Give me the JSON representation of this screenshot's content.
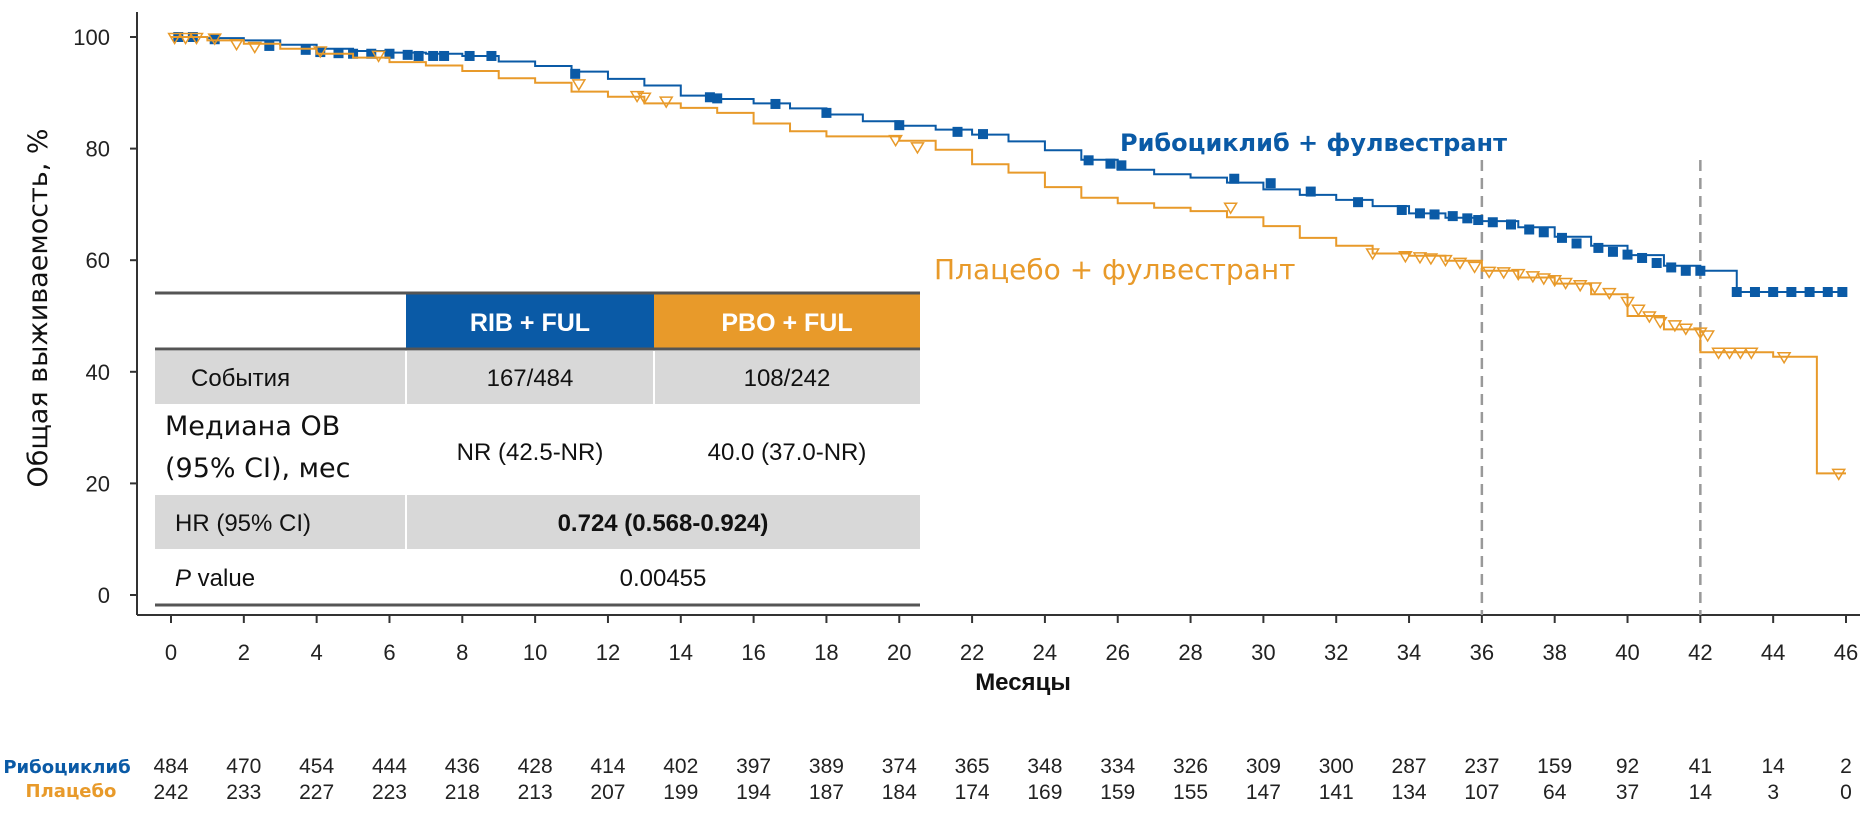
{
  "chart_data": {
    "type": "line",
    "ylabel": "Общая выживаемость, %",
    "xlabel": "Месяцы",
    "xlim": [
      0,
      46
    ],
    "ylim": [
      0,
      100
    ],
    "x_ticks": [
      0,
      2,
      4,
      6,
      8,
      10,
      12,
      14,
      16,
      18,
      20,
      22,
      24,
      26,
      28,
      30,
      32,
      34,
      36,
      38,
      40,
      42,
      44,
      46
    ],
    "y_ticks": [
      0,
      20,
      40,
      60,
      80,
      100
    ],
    "reference_lines_x": [
      36,
      42
    ],
    "colors": {
      "rib": "#0a5aa6",
      "pbo": "#e89a2a",
      "table_gray": "#d8d8d8"
    },
    "series": [
      {
        "name": "Рибоциклиб + фулвестрант",
        "step_x": [
          0,
          1,
          2,
          3,
          4,
          5,
          6,
          7,
          8,
          9,
          10,
          11,
          12,
          13,
          14,
          15,
          16,
          17,
          18,
          19,
          20,
          21,
          22,
          23,
          24,
          25,
          26,
          27,
          28,
          29,
          30,
          31,
          32,
          33,
          34,
          35,
          36,
          37,
          38,
          39,
          40,
          41,
          42,
          43,
          44,
          45,
          46
        ],
        "step_y": [
          100,
          99.8,
          99.4,
          98.6,
          97.9,
          97.5,
          97.2,
          97.0,
          96.6,
          95.6,
          94.8,
          93.8,
          92.5,
          91.3,
          89.5,
          88.9,
          88.1,
          87.2,
          86.1,
          84.9,
          84.1,
          83.4,
          82.5,
          81.3,
          79.7,
          78.0,
          76.2,
          75.4,
          74.8,
          73.9,
          72.7,
          71.7,
          70.8,
          69.7,
          68.4,
          67.6,
          67.0,
          65.9,
          64.2,
          62.6,
          60.9,
          59.0,
          58.1,
          54.3,
          54.3,
          54.3,
          54.3
        ],
        "censor_x": [
          0.2,
          0.6,
          1.2,
          2.7,
          3.7,
          4.1,
          4.6,
          5.0,
          5.5,
          6.0,
          6.5,
          6.8,
          7.2,
          7.5,
          8.2,
          8.8,
          11.1,
          14.8,
          15.0,
          16.6,
          18.0,
          20.0,
          21.6,
          22.3,
          25.2,
          25.8,
          26.1,
          29.2,
          30.2,
          31.3,
          32.6,
          33.8,
          34.3,
          34.7,
          35.2,
          35.6,
          35.9,
          36.3,
          36.8,
          37.3,
          37.7,
          38.2,
          38.6,
          39.2,
          39.6,
          40.0,
          40.4,
          40.8,
          41.2,
          41.6,
          42.0,
          43.0,
          43.5,
          44.0,
          44.5,
          45.0,
          45.5,
          45.9
        ],
        "censor_y": [
          100,
          100,
          99.6,
          98.4,
          97.7,
          97.3,
          97.1,
          97.0,
          97.0,
          97.0,
          96.8,
          96.6,
          96.6,
          96.6,
          96.6,
          96.6,
          93.4,
          89.2,
          89.0,
          88.0,
          86.4,
          84.2,
          83.0,
          82.6,
          77.9,
          77.3,
          77.0,
          74.6,
          73.8,
          72.3,
          70.4,
          69.0,
          68.4,
          68.2,
          67.9,
          67.5,
          67.2,
          66.8,
          66.4,
          65.5,
          65.0,
          64.0,
          63.0,
          62.2,
          61.5,
          61.0,
          60.4,
          59.5,
          58.7,
          58.1,
          58.1,
          54.3,
          54.3,
          54.3,
          54.3,
          54.3,
          54.3,
          54.3
        ]
      },
      {
        "name": "Плацебо + фулвестрант",
        "step_x": [
          0,
          1,
          2,
          3,
          4,
          5,
          6,
          7,
          8,
          9,
          10,
          11,
          12,
          13,
          14,
          15,
          16,
          17,
          18,
          19,
          20,
          21,
          22,
          23,
          24,
          25,
          26,
          27,
          28,
          29,
          30,
          31,
          32,
          33,
          34,
          35,
          36,
          37,
          38,
          39,
          40,
          41,
          42,
          43,
          44,
          45,
          45.2,
          46
        ],
        "step_y": [
          100,
          99.4,
          98.8,
          97.9,
          97.0,
          96.3,
          95.5,
          94.9,
          93.9,
          92.6,
          91.8,
          90.2,
          89.3,
          88.1,
          87.3,
          86.4,
          84.5,
          83.1,
          82.2,
          82.2,
          81.4,
          79.8,
          77.2,
          75.7,
          73.1,
          71.2,
          70.2,
          69.4,
          68.8,
          67.7,
          66.1,
          64.0,
          62.6,
          61.2,
          60.8,
          59.9,
          58.1,
          56.9,
          55.8,
          53.9,
          50.0,
          47.6,
          43.5,
          43.5,
          42.7,
          42.7,
          21.8,
          21.8
        ],
        "censor_x": [
          0.1,
          0.4,
          0.7,
          1.2,
          1.8,
          2.3,
          4.1,
          5.7,
          11.2,
          12.8,
          13.0,
          13.6,
          19.9,
          20.5,
          29.1,
          33.0,
          33.9,
          34.3,
          34.6,
          35.0,
          35.4,
          35.8,
          36.2,
          36.6,
          37.0,
          37.4,
          37.7,
          38.0,
          38.3,
          38.7,
          39.1,
          39.5,
          40.0,
          40.3,
          40.6,
          40.9,
          41.3,
          41.6,
          42.0,
          42.2,
          42.5,
          42.8,
          43.1,
          43.4,
          44.3,
          45.8
        ],
        "censor_y": [
          99.9,
          99.9,
          99.9,
          99.8,
          98.8,
          98.3,
          97.5,
          96.7,
          91.6,
          89.5,
          89.2,
          88.5,
          81.6,
          80.3,
          69.5,
          61.3,
          60.8,
          60.6,
          60.4,
          60.1,
          59.6,
          58.9,
          58.0,
          57.9,
          57.6,
          57.2,
          56.8,
          56.5,
          56.0,
          55.6,
          55.2,
          54.2,
          52.6,
          51.2,
          50.0,
          49.0,
          48.4,
          47.8,
          47.1,
          46.6,
          43.5,
          43.5,
          43.5,
          43.5,
          42.7,
          21.8
        ]
      }
    ]
  },
  "table": {
    "col_rib": "RIB + FUL",
    "col_pbo": "PBO + FUL",
    "events_label": "События",
    "events_rib": "167/484",
    "events_pbo": "108/242",
    "median_label_1": "Медиана ОВ",
    "median_label_2": "(95% CI), мес",
    "median_rib": "NR (42.5-NR)",
    "median_pbo": "40.0 (37.0-NR)",
    "hr_label": "HR (95% CI)",
    "hr_value": "0.724 (0.568-0.924)",
    "p_label_italic": "P",
    "p_label_rest": " value",
    "p_value": "0.00455"
  },
  "risk_table": {
    "rib_label": "Рибоциклиб",
    "pbo_label": "Плацебо",
    "rib_counts": [
      "484",
      "470",
      "454",
      "444",
      "436",
      "428",
      "414",
      "402",
      "397",
      "389",
      "374",
      "365",
      "348",
      "334",
      "326",
      "309",
      "300",
      "287",
      "237",
      "159",
      "92",
      "41",
      "14",
      "2"
    ],
    "pbo_counts": [
      "242",
      "233",
      "227",
      "223",
      "218",
      "213",
      "207",
      "199",
      "194",
      "187",
      "184",
      "174",
      "169",
      "159",
      "155",
      "147",
      "141",
      "134",
      "107",
      "64",
      "37",
      "14",
      "3",
      "0"
    ]
  }
}
